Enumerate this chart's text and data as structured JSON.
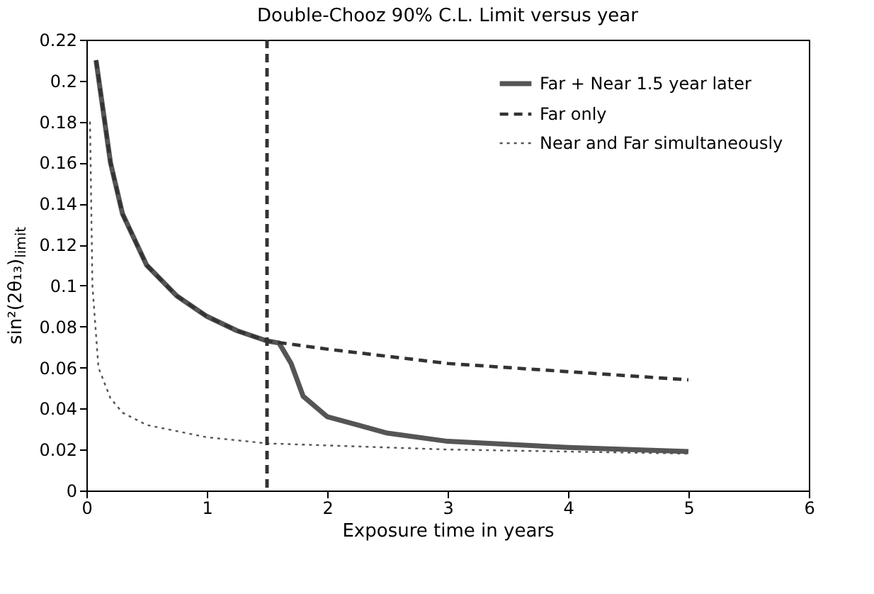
{
  "chart_data": {
    "type": "line",
    "title": "Double-Chooz 90% C.L. Limit versus year",
    "xlabel": "Exposure time in years",
    "ylabel": "sin²(2θ₁₃)$_{limit}$",
    "xlim": [
      0,
      6
    ],
    "xticks": [
      0,
      1,
      2,
      3,
      4,
      5,
      6
    ],
    "ylim": [
      0,
      0.22
    ],
    "yticks": [
      0,
      0.02,
      0.04,
      0.06,
      0.08,
      0.1,
      0.12,
      0.14,
      0.16,
      0.18,
      0.2,
      0.22
    ],
    "grid": false,
    "legend": "top right",
    "series": [
      {
        "name": "Far + Near 1.5 year later",
        "color": "#555555",
        "line_style": "solid",
        "x": [
          0.08,
          0.2,
          0.3,
          0.5,
          0.75,
          1.0,
          1.25,
          1.5,
          1.6,
          1.7,
          1.8,
          2.0,
          2.5,
          3,
          4,
          5
        ],
        "values": [
          0.21,
          0.16,
          0.135,
          0.11,
          0.095,
          0.085,
          0.078,
          0.073,
          0.072,
          0.062,
          0.046,
          0.036,
          0.028,
          0.024,
          0.021,
          0.019
        ]
      },
      {
        "name": "Far only",
        "color": "#333333",
        "line_style": "dashed",
        "x": [
          0.08,
          0.2,
          0.3,
          0.5,
          0.75,
          1.0,
          1.25,
          1.5,
          2,
          3,
          4,
          5
        ],
        "values": [
          0.21,
          0.16,
          0.135,
          0.11,
          0.095,
          0.085,
          0.078,
          0.073,
          0.069,
          0.062,
          0.058,
          0.054
        ]
      },
      {
        "name": "Near and Far simultaneously",
        "color": "#555555",
        "line_style": "dotted",
        "x": [
          0.03,
          0.05,
          0.1,
          0.2,
          0.3,
          0.5,
          1,
          1.5,
          2,
          3,
          4,
          5
        ],
        "values": [
          0.18,
          0.1,
          0.06,
          0.045,
          0.038,
          0.032,
          0.026,
          0.023,
          0.022,
          0.02,
          0.019,
          0.018
        ]
      }
    ],
    "ref_lines": [
      {
        "axis": "x",
        "value": 1.5,
        "color": "#333333",
        "line_style": "dashed"
      }
    ]
  }
}
